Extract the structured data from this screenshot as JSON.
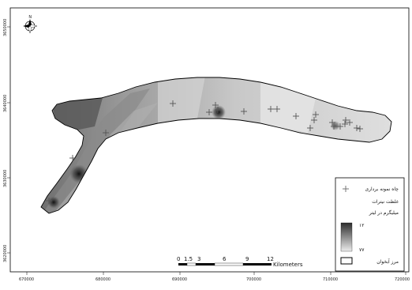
{
  "map": {
    "x_tick_labels": [
      "670000",
      "680000",
      "690000",
      "700000",
      "710000",
      "720000"
    ],
    "y_tick_labels": [
      "3650000",
      "3640000",
      "3630000",
      "3620000"
    ],
    "scale_bar": {
      "labels": [
        "0",
        "1.5",
        "3",
        "6",
        "9",
        "12"
      ],
      "unit": "Kilometers"
    },
    "legend": {
      "well_label": "چاه نمونه برداری",
      "title_line1": "غلظت نیترات",
      "title_line2": "میلیگرم در لیتر",
      "high_value": "۱۲",
      "low_value": "۷۷",
      "boundary_label": "مرز آبخوان"
    },
    "north_arrow_label": "N",
    "colors": {
      "high": "#2d2d2d",
      "low": "#ececec",
      "boundary": "#000000"
    },
    "sample_well_count": 22
  }
}
